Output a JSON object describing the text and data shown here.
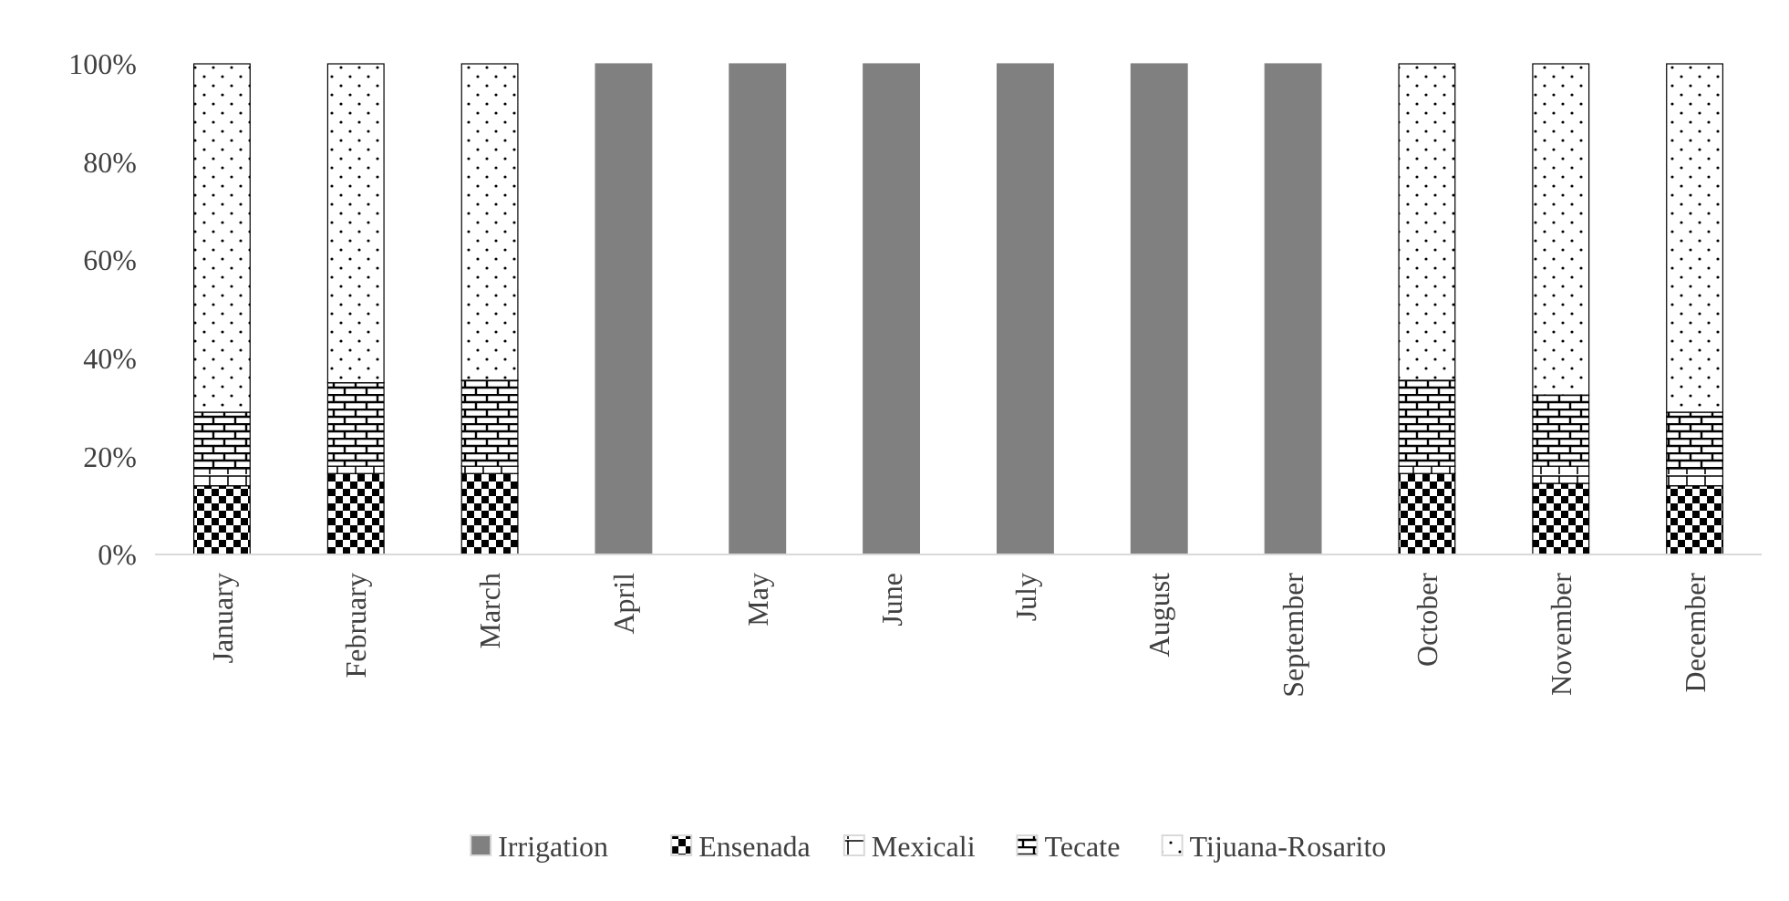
{
  "chart_data": {
    "type": "bar",
    "stacked": true,
    "legend": "bottom",
    "grid": false,
    "categories": [
      "January",
      "February",
      "March",
      "April",
      "May",
      "June",
      "July",
      "August",
      "September",
      "October",
      "November",
      "December"
    ],
    "series": [
      {
        "name": "Irrigation",
        "color": "#808080",
        "values": [
          0,
          0,
          0,
          100,
          100,
          100,
          100,
          100,
          100,
          0,
          0,
          0
        ]
      },
      {
        "name": "Ensenada",
        "color": "#000000",
        "values": [
          14,
          16.5,
          16.5,
          0,
          0,
          0,
          0,
          0,
          0,
          16.5,
          14.5,
          14
        ]
      },
      {
        "name": "Mexicali",
        "color": "#000000",
        "values": [
          3.5,
          1.5,
          1.5,
          0,
          0,
          0,
          0,
          0,
          0,
          1.5,
          3.5,
          3.5
        ]
      },
      {
        "name": "Tecate",
        "color": "#000000",
        "values": [
          11.5,
          17,
          17.5,
          0,
          0,
          0,
          0,
          0,
          0,
          17.5,
          14.5,
          11.5
        ]
      },
      {
        "name": "Tijuana-Rosarito",
        "color": "#000000",
        "values": [
          71,
          65,
          64.5,
          0,
          0,
          0,
          0,
          0,
          0,
          64.5,
          67.5,
          71
        ]
      }
    ],
    "ylim": [
      0,
      100
    ],
    "yticks": [
      {
        "value": 0,
        "label": "0%"
      },
      {
        "value": 20,
        "label": "20%"
      },
      {
        "value": 40,
        "label": "40%"
      },
      {
        "value": 60,
        "label": "60%"
      },
      {
        "value": 80,
        "label": "80%"
      },
      {
        "value": 100,
        "label": "100%"
      }
    ]
  }
}
